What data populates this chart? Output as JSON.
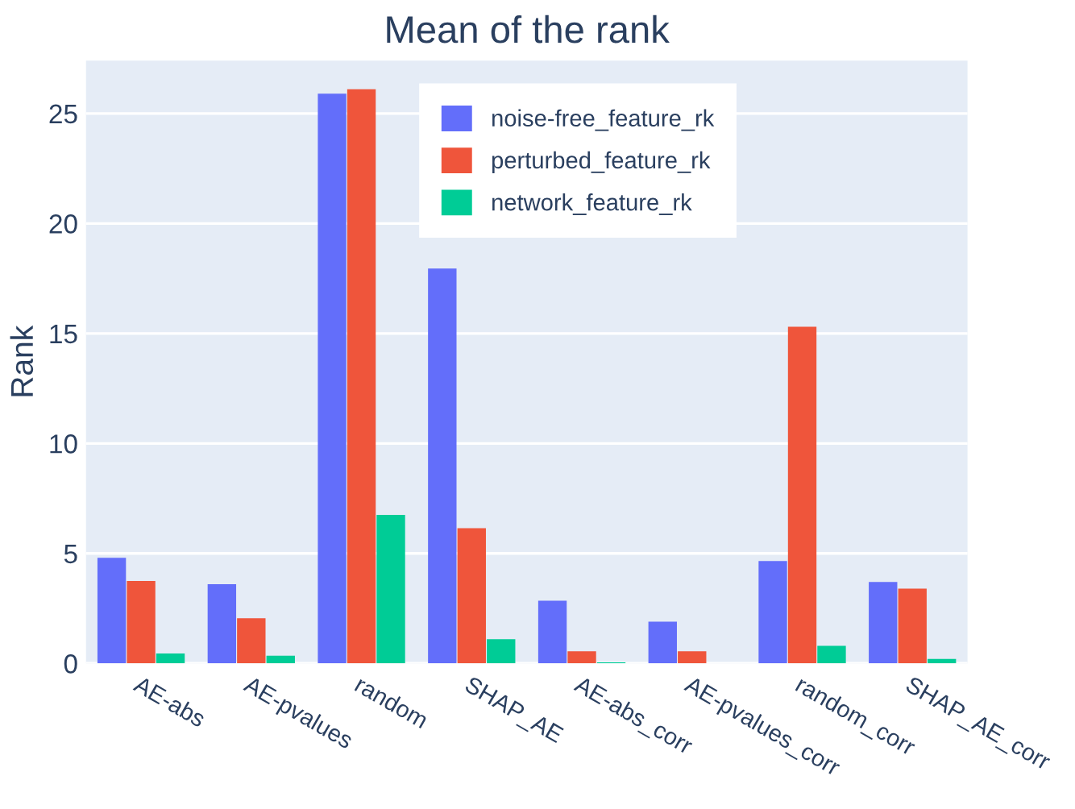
{
  "chart_data": {
    "type": "bar",
    "title": "Mean of the rank",
    "ylabel": "Rank",
    "categories": [
      "AE-abs",
      "AE-pvalues",
      "random",
      "SHAP_AE",
      "AE-abs_corr",
      "AE-pvalues_corr",
      "random_corr",
      "SHAP_AE_corr"
    ],
    "series": [
      {
        "name": "noise-free_feature_rk",
        "color": "#636efa",
        "values": [
          4.8,
          3.6,
          25.9,
          17.95,
          2.85,
          1.9,
          4.65,
          3.7
        ]
      },
      {
        "name": "perturbed_feature_rk",
        "color": "#ef553b",
        "values": [
          3.75,
          2.05,
          26.1,
          6.15,
          0.55,
          0.55,
          15.3,
          3.4
        ]
      },
      {
        "name": "network_feature_rk",
        "color": "#00cc96",
        "values": [
          0.45,
          0.35,
          6.75,
          1.1,
          0.05,
          0,
          0.8,
          0.2
        ]
      }
    ],
    "ylim": [
      0,
      27.4
    ],
    "yticks": [
      0,
      5,
      10,
      15,
      20,
      25
    ],
    "grid": "y",
    "legend": "top right"
  }
}
